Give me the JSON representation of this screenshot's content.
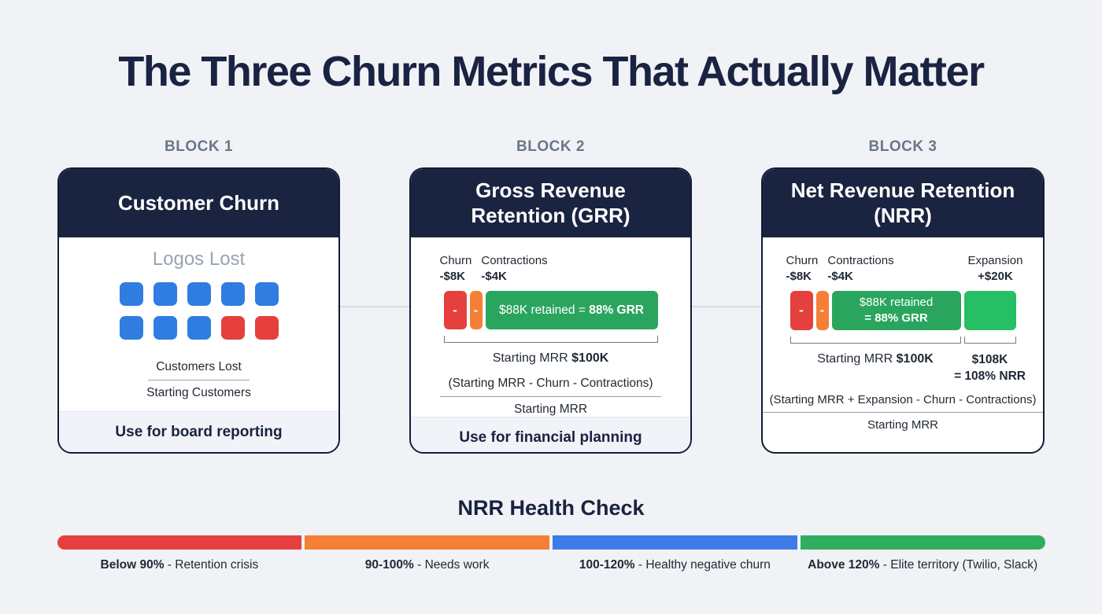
{
  "page": {
    "title": "The Three Churn Metrics That Actually Matter"
  },
  "colors": {
    "navy": "#1a2440",
    "card_border": "#141c36",
    "background": "#f0f2f6",
    "blue": "#2f7de1",
    "red": "#e5403e",
    "orange": "#f57f35",
    "green_retained": "#2aa55e",
    "green_expansion": "#26bf63",
    "health_blue": "#3c7ce8",
    "health_green": "#2fae5e"
  },
  "blocks": [
    {
      "label": "BLOCK 1",
      "title": "Customer Churn",
      "subtitle": "Logos Lost",
      "squares": [
        "blue",
        "blue",
        "blue",
        "blue",
        "blue",
        "blue",
        "blue",
        "blue",
        "red",
        "red"
      ],
      "formula": {
        "numerator": "Customers Lost",
        "denominator": "Starting Customers"
      },
      "footer": "Use for board reporting"
    },
    {
      "label": "BLOCK 2",
      "title": "Gross Revenue Retention (GRR)",
      "churn": {
        "label": "Churn",
        "value": "-$8K"
      },
      "contractions": {
        "label": "Contractions",
        "value": "-$4K"
      },
      "minus": "-",
      "retained": {
        "text": "$88K retained = ",
        "bold": "88% GRR"
      },
      "starting_mrr": {
        "label": "Starting MRR ",
        "value": "$100K"
      },
      "formula": {
        "numerator": "(Starting MRR - Churn - Contractions)",
        "denominator": "Starting MRR"
      },
      "footer": "Use for financial planning"
    },
    {
      "label": "BLOCK 3",
      "title": "Net Revenue Retention (NRR)",
      "churn": {
        "label": "Churn",
        "value": "-$8K"
      },
      "contractions": {
        "label": "Contractions",
        "value": "-$4K"
      },
      "expansion": {
        "label": "Expansion",
        "value": "+$20K"
      },
      "minus": "-",
      "retained": {
        "line1": "$88K retained",
        "line2": "= 88% GRR"
      },
      "starting_mrr": {
        "label": "Starting MRR ",
        "value": "$100K"
      },
      "nrr_result": {
        "line1": "$108K",
        "line2": "= 108% NRR"
      },
      "formula": {
        "numerator": "(Starting MRR + Expansion - Churn - Contractions)",
        "denominator": "Starting MRR"
      }
    }
  ],
  "health_check": {
    "title": "NRR Health Check",
    "segments": [
      {
        "color_key": "red",
        "range": "Below 90%",
        "description": " - Retention crisis"
      },
      {
        "color_key": "orange",
        "range": "90-100%",
        "description": " - Needs work"
      },
      {
        "color_key": "health_blue",
        "range": "100-120%",
        "description": " - Healthy negative churn"
      },
      {
        "color_key": "health_green",
        "range": "Above 120%",
        "description": " - Elite territory (Twilio, Slack)"
      }
    ]
  }
}
